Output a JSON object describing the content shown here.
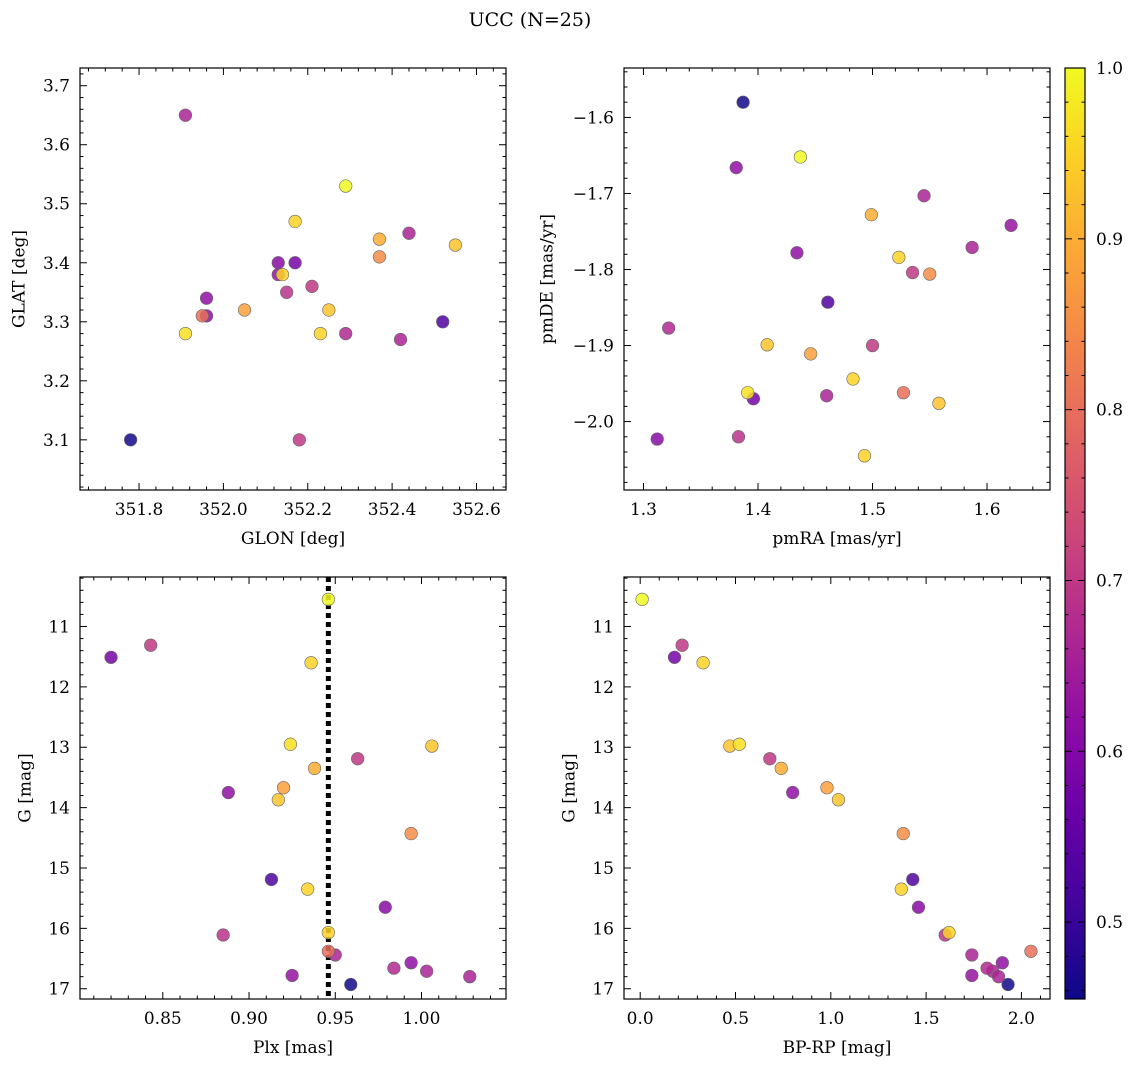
{
  "suptitle": "UCC (N=25)",
  "colormap": "plasma",
  "colorbar": {
    "min": 0.455,
    "max": 1.0,
    "ticks": [
      "0.5",
      "0.6",
      "0.7",
      "0.8",
      "0.9",
      "1.0"
    ]
  },
  "membership_probability": [
    1.0,
    0.95,
    0.93,
    0.97,
    0.9,
    0.88,
    0.93,
    0.7,
    0.85,
    0.95,
    0.95,
    0.7,
    0.58,
    0.62,
    0.66,
    0.8,
    0.67,
    0.69,
    0.66,
    0.66,
    0.62,
    0.53,
    0.63,
    0.46,
    0.61
  ],
  "chart_data": [
    {
      "id": "glon-glat",
      "type": "scatter",
      "xlabel": "GLON [deg]",
      "ylabel": "GLAT [deg]",
      "xlim": [
        351.66,
        352.67
      ],
      "ylim": [
        3.015,
        3.73
      ],
      "xticks": [
        351.8,
        352.0,
        352.2,
        352.4,
        352.6
      ],
      "xtick_labels": [
        "351.8",
        "352.0",
        "352.2",
        "352.4",
        "352.6"
      ],
      "yticks": [
        3.1,
        3.2,
        3.3,
        3.4,
        3.5,
        3.6,
        3.7
      ],
      "ytick_labels": [
        "3.1",
        "3.2",
        "3.3",
        "3.4",
        "3.5",
        "3.6",
        "3.7"
      ],
      "x": [
        352.29,
        352.17,
        352.55,
        351.91,
        352.37,
        352.05,
        352.25,
        352.18,
        352.37,
        352.23,
        352.14,
        352.21,
        352.17,
        351.96,
        351.91,
        351.95,
        352.29,
        352.15,
        352.42,
        352.44,
        351.96,
        352.52,
        352.13,
        351.78,
        352.13
      ],
      "y": [
        3.53,
        3.47,
        3.43,
        3.28,
        3.44,
        3.32,
        3.32,
        3.1,
        3.41,
        3.28,
        3.38,
        3.36,
        3.4,
        3.34,
        3.65,
        3.31,
        3.28,
        3.35,
        3.27,
        3.45,
        3.31,
        3.3,
        3.38,
        3.1,
        3.4
      ]
    },
    {
      "id": "pm",
      "type": "scatter",
      "xlabel": "pmRA [mas/yr]",
      "ylabel": "pmDE [mas/yr]",
      "xlim": [
        1.283,
        1.655
      ],
      "ylim": [
        -2.09,
        -1.535
      ],
      "xticks": [
        1.3,
        1.4,
        1.5,
        1.6
      ],
      "xtick_labels": [
        "1.3",
        "1.4",
        "1.5",
        "1.6"
      ],
      "yticks": [
        -2.0,
        -1.9,
        -1.8,
        -1.7,
        -1.6
      ],
      "ytick_labels": [
        "−2.0",
        "−1.9",
        "−1.8",
        "−1.7",
        "−1.6"
      ],
      "x": [
        1.437,
        1.523,
        1.558,
        1.391,
        1.499,
        1.446,
        1.408,
        1.535,
        1.55,
        1.483,
        1.493,
        1.5,
        1.396,
        1.381,
        1.46,
        1.527,
        1.322,
        1.383,
        1.545,
        1.587,
        1.434,
        1.461,
        1.621,
        1.387,
        1.312
      ],
      "y": [
        -1.652,
        -1.784,
        -1.976,
        -1.962,
        -1.728,
        -1.911,
        -1.899,
        -1.804,
        -1.806,
        -1.944,
        -2.045,
        -1.9,
        -1.97,
        -1.666,
        -1.966,
        -1.962,
        -1.877,
        -2.02,
        -1.703,
        -1.771,
        -1.778,
        -1.843,
        -1.742,
        -1.58,
        -2.023
      ]
    },
    {
      "id": "plx-g",
      "type": "scatter",
      "xlabel": "Plx [mas]",
      "ylabel": "G [mag]",
      "xlim": [
        0.802,
        1.049
      ],
      "ylim": [
        17.17,
        10.18
      ],
      "xticks": [
        0.85,
        0.9,
        0.95,
        1.0
      ],
      "xtick_labels": [
        "0.85",
        "0.90",
        "0.95",
        "1.00"
      ],
      "yticks": [
        11,
        12,
        13,
        14,
        15,
        16,
        17
      ],
      "ytick_labels": [
        "11",
        "12",
        "13",
        "14",
        "15",
        "16",
        "17"
      ],
      "vline": 0.946,
      "x": [
        0.946,
        0.936,
        1.006,
        0.924,
        0.938,
        0.92,
        0.917,
        0.963,
        0.994,
        0.946,
        0.934,
        0.843,
        0.82,
        0.888,
        0.95,
        0.946,
        0.984,
        0.885,
        1.003,
        1.028,
        0.994,
        0.913,
        0.925,
        0.959,
        0.979
      ],
      "y": [
        10.55,
        11.6,
        12.98,
        12.95,
        13.35,
        13.67,
        13.87,
        13.19,
        14.43,
        16.07,
        15.35,
        11.31,
        11.51,
        13.75,
        16.44,
        16.38,
        16.66,
        16.11,
        16.71,
        16.8,
        16.57,
        15.19,
        16.78,
        16.93,
        15.65
      ]
    },
    {
      "id": "cmd",
      "type": "scatter",
      "xlabel": "BP-RP [mag]",
      "ylabel": "G [mag]",
      "xlim": [
        -0.085,
        2.15
      ],
      "ylim": [
        17.17,
        10.18
      ],
      "xticks": [
        0.0,
        0.5,
        1.0,
        1.5,
        2.0
      ],
      "xtick_labels": [
        "0.0",
        "0.5",
        "1.0",
        "1.5",
        "2.0"
      ],
      "yticks": [
        11,
        12,
        13,
        14,
        15,
        16,
        17
      ],
      "ytick_labels": [
        "11",
        "12",
        "13",
        "14",
        "15",
        "16",
        "17"
      ],
      "x": [
        0.01,
        0.33,
        0.47,
        0.52,
        0.74,
        0.98,
        1.04,
        0.68,
        1.38,
        1.62,
        1.37,
        0.22,
        0.18,
        0.8,
        1.74,
        2.05,
        1.82,
        1.6,
        1.85,
        1.88,
        1.9,
        1.43,
        1.74,
        1.93,
        1.46
      ],
      "y": [
        10.55,
        11.6,
        12.98,
        12.95,
        13.35,
        13.67,
        13.87,
        13.19,
        14.43,
        16.07,
        15.35,
        11.31,
        11.51,
        13.75,
        16.44,
        16.38,
        16.66,
        16.11,
        16.71,
        16.8,
        16.57,
        15.19,
        16.78,
        16.93,
        15.65
      ]
    }
  ]
}
